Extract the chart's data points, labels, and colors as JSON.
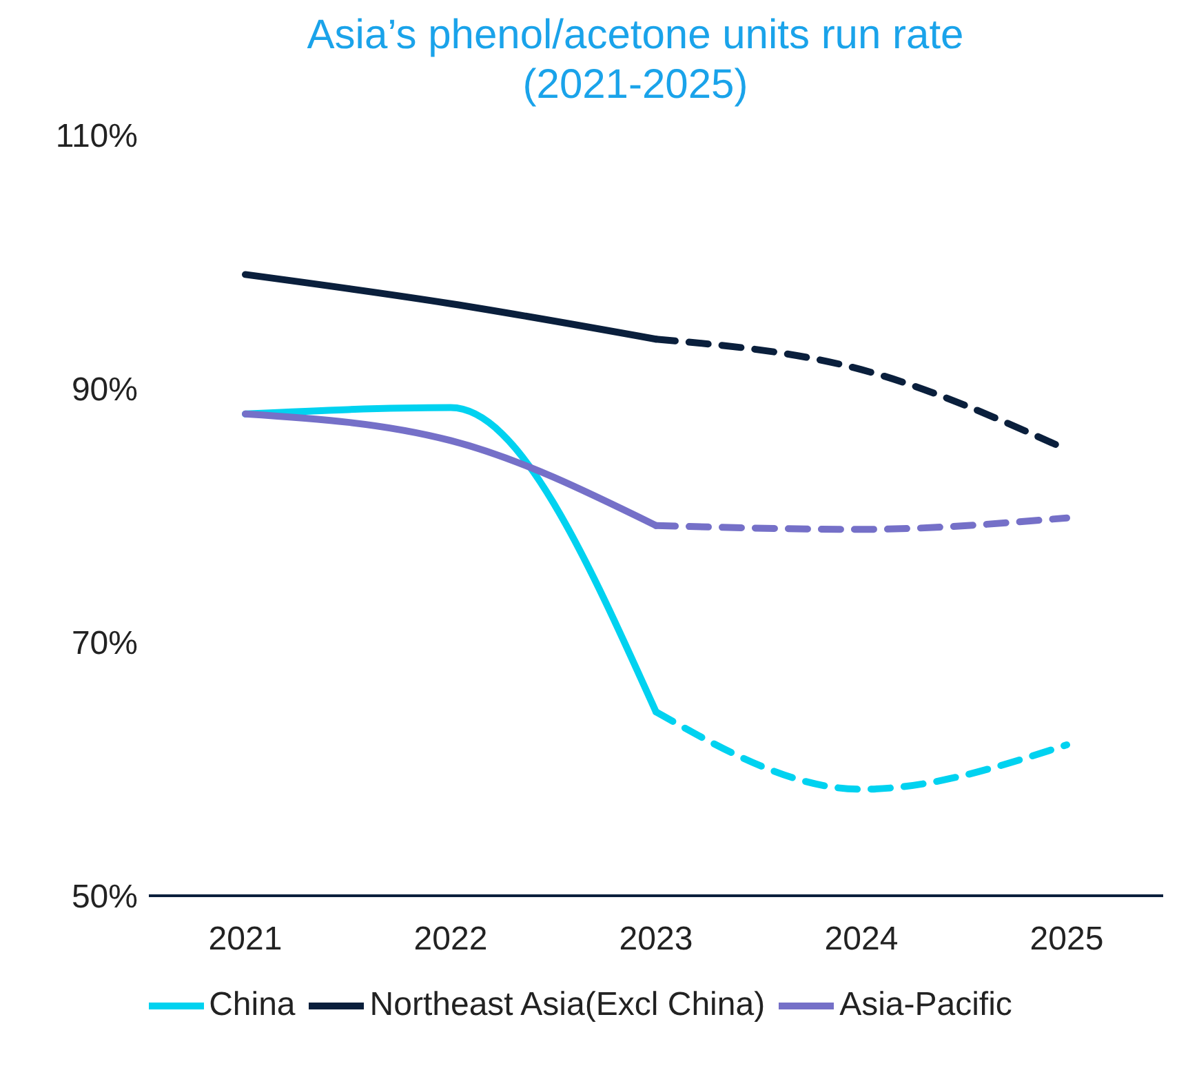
{
  "chart_data": {
    "type": "line",
    "title": "Asia’s phenol/acetone units run rate\n(2021-2025)",
    "categories": [
      "2021",
      "2022",
      "2023",
      "2024",
      "2025"
    ],
    "series": [
      {
        "name": "China",
        "color": "#00d2f0",
        "values": [
          88,
          88.5,
          64.5,
          null,
          null
        ],
        "line_style": "solid"
      },
      {
        "name": "Northeast Asia(Excl China)",
        "color": "#0a1f3c",
        "values": [
          99,
          96.7,
          93.9,
          null,
          null
        ],
        "line_style": "solid"
      },
      {
        "name": "Asia-Pacific",
        "color": "#7570c8",
        "values": [
          88,
          85.9,
          79.2,
          null,
          null
        ],
        "line_style": "solid"
      },
      {
        "color": "#00d2f0",
        "values": [
          null,
          null,
          64.5,
          58.4,
          61.9
        ],
        "line_style": "dashed"
      },
      {
        "color": "#0a1f3c",
        "values": [
          null,
          null,
          93.9,
          91.5,
          85.2
        ],
        "line_style": "dashed"
      },
      {
        "color": "#7570c8",
        "values": [
          null,
          null,
          79.2,
          78.9,
          79.8
        ],
        "line_style": "dashed"
      }
    ],
    "ylim": [
      50,
      110
    ],
    "yticks": [
      {
        "value": 50,
        "label": "50%"
      },
      {
        "value": 70,
        "label": "70%"
      },
      {
        "value": 90,
        "label": "90%"
      },
      {
        "value": 110,
        "label": "110%"
      }
    ],
    "grid": false,
    "legend": "bottom",
    "marker": "none"
  }
}
